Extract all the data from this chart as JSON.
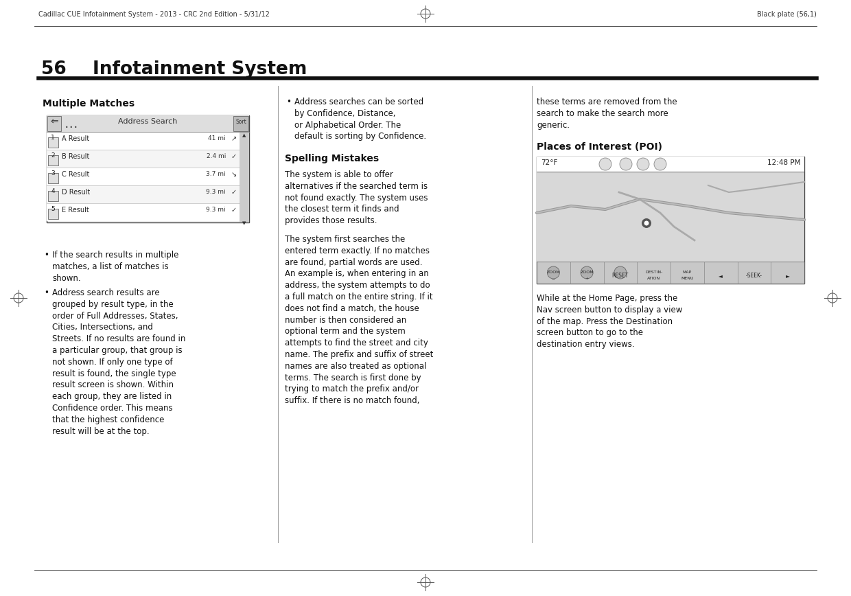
{
  "bg_color": "#ffffff",
  "header_text_left": "Cadillac CUE Infotainment System - 2013 - CRC 2nd Edition - 5/31/12",
  "header_text_right": "Black plate (56,1)",
  "page_number": "56",
  "page_title": "Infotainment System",
  "section1_heading": "Multiple Matches",
  "section2_heading": "Spelling Mistakes",
  "section3_heading": "Places of Interest (POI)",
  "col1_bullet1": "If the search results in multiple\nmatches, a list of matches is\nshown.",
  "col1_bullet2": "Address search results are\ngrouped by result type, in the\norder of Full Addresses, States,\nCities, Intersections, and\nStreets. If no results are found in\na particular group, that group is\nnot shown. If only one type of\nresult is found, the single type\nresult screen is shown. Within\neach group, they are listed in\nConfidence order. This means\nthat the highest confidence\nresult will be at the top.",
  "col2_bullet": "Address searches can be sorted\nby Confidence, Distance,\nor Alphabetical Order. The\ndefault is sorting by Confidence.",
  "col2_spelling_para1": "The system is able to offer\nalternatives if the searched term is\nnot found exactly. The system uses\nthe closest term it finds and\nprovides those results.",
  "col2_spelling_para2": "The system first searches the\nentered term exactly. If no matches\nare found, partial words are used.\nAn example is, when entering in an\naddress, the system attempts to do\na full match on the entire string. If it\ndoes not find a match, the house\nnumber is then considered an\noptional term and the system\nattempts to find the street and city\nname. The prefix and suffix of street\nnames are also treated as optional\nterms. The search is first done by\ntrying to match the prefix and/or\nsuffix. If there is no match found,",
  "col3_para1": "these terms are removed from the\nsearch to make the search more\ngeneric.",
  "col3_poi_para": "While at the Home Page, press the\nNav screen button to display a view\nof the map. Press the Destination\nscreen button to go to the\ndestination entry views.",
  "address_search_rows": [
    {
      "num": "1",
      "label": "A Result",
      "dist": "41 mi",
      "icon": "↗"
    },
    {
      "num": "2",
      "label": "B Result",
      "dist": "2.4 mi",
      "icon": "✓"
    },
    {
      "num": "3",
      "label": "C Result",
      "dist": "3.7 mi",
      "icon": "↘"
    },
    {
      "num": "4",
      "label": "D Result",
      "dist": "9.3 mi",
      "icon": "✓"
    },
    {
      "num": "5",
      "label": "E Result",
      "dist": "9.3 mi",
      "icon": "✓"
    }
  ],
  "nav_temp": "72°F",
  "nav_time": "12:48 PM"
}
